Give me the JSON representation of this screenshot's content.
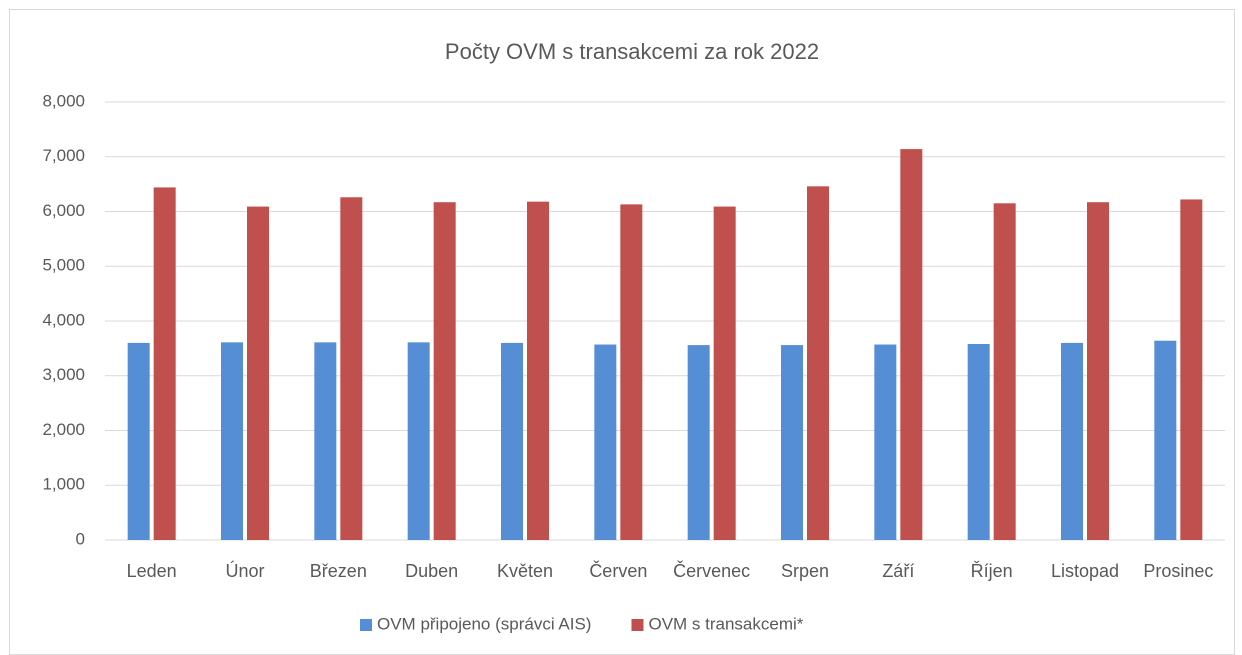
{
  "chart_data": {
    "type": "bar",
    "title": "Počty OVM s transakcemi za rok 2022",
    "categories": [
      "Leden",
      "Únor",
      "Březen",
      "Duben",
      "Květen",
      "Červen",
      "Červenec",
      "Srpen",
      "Září",
      "Říjen",
      "Listopad",
      "Prosinec"
    ],
    "series": [
      {
        "name": "OVM připojeno (správci AIS)",
        "color": "#558ed5",
        "values": [
          3600,
          3610,
          3610,
          3610,
          3600,
          3570,
          3560,
          3560,
          3570,
          3580,
          3600,
          3640
        ]
      },
      {
        "name": "OVM s transakcemi*",
        "color": "#c0504d",
        "values": [
          6440,
          6090,
          6260,
          6170,
          6180,
          6130,
          6090,
          6460,
          7140,
          6150,
          6170,
          6220
        ]
      }
    ],
    "ylim": [
      0,
      8000
    ],
    "yticks": [
      0,
      {
        "value": 1000,
        "label": "1,000"
      },
      {
        "value": 2000,
        "label": "2,000"
      },
      {
        "value": 3000,
        "label": "3,000"
      },
      {
        "value": 4000,
        "label": "4,000"
      },
      {
        "value": 5000,
        "label": "5,000"
      },
      {
        "value": 6000,
        "label": "6,000"
      },
      {
        "value": 7000,
        "label": "7,000"
      },
      {
        "value": 8000,
        "label": "8,000"
      }
    ],
    "grid": true,
    "legend": "bottom"
  }
}
